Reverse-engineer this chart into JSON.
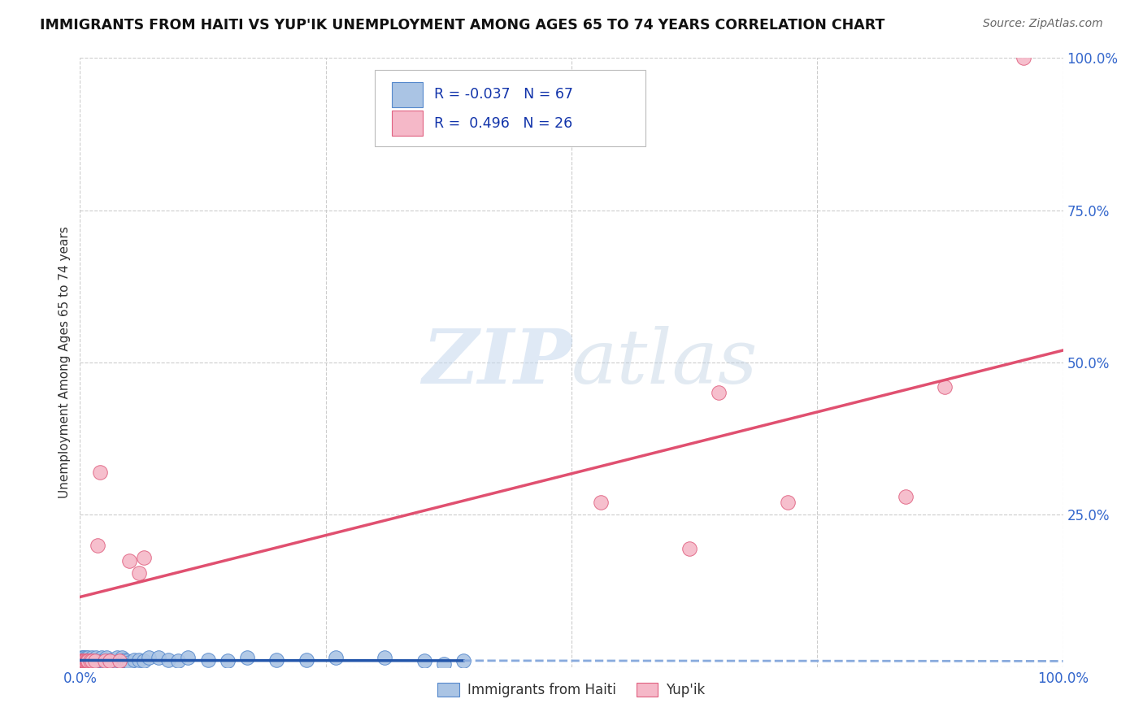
{
  "title": "IMMIGRANTS FROM HAITI VS YUP'IK UNEMPLOYMENT AMONG AGES 65 TO 74 YEARS CORRELATION CHART",
  "source": "Source: ZipAtlas.com",
  "ylabel": "Unemployment Among Ages 65 to 74 years",
  "xlim": [
    0.0,
    1.0
  ],
  "ylim": [
    0.0,
    1.0
  ],
  "xticks": [
    0.0,
    0.25,
    0.5,
    0.75,
    1.0
  ],
  "yticks": [
    0.0,
    0.25,
    0.5,
    0.75,
    1.0
  ],
  "xticklabels": [
    "0.0%",
    "",
    "",
    "",
    "100.0%"
  ],
  "yticklabels": [
    "",
    "25.0%",
    "50.0%",
    "75.0%",
    "100.0%"
  ],
  "background_color": "#ffffff",
  "grid_color": "#cccccc",
  "watermark_zip": "ZIP",
  "watermark_atlas": "atlas",
  "haiti_color": "#aac4e4",
  "haiti_edge_color": "#5588cc",
  "haiti_R": -0.037,
  "haiti_N": 67,
  "haiti_line_color_solid": "#2255aa",
  "haiti_line_color_dashed": "#88aadd",
  "yupik_color": "#f5b8c8",
  "yupik_edge_color": "#e06080",
  "yupik_R": 0.496,
  "yupik_N": 26,
  "yupik_line_color": "#e05070",
  "haiti_x": [
    0.001,
    0.001,
    0.002,
    0.002,
    0.002,
    0.003,
    0.003,
    0.003,
    0.003,
    0.004,
    0.004,
    0.004,
    0.005,
    0.005,
    0.005,
    0.006,
    0.006,
    0.006,
    0.007,
    0.007,
    0.008,
    0.008,
    0.009,
    0.01,
    0.01,
    0.011,
    0.012,
    0.013,
    0.014,
    0.015,
    0.016,
    0.017,
    0.018,
    0.019,
    0.02,
    0.021,
    0.022,
    0.023,
    0.025,
    0.027,
    0.03,
    0.032,
    0.035,
    0.038,
    0.04,
    0.043,
    0.045,
    0.048,
    0.05,
    0.055,
    0.06,
    0.065,
    0.07,
    0.08,
    0.09,
    0.1,
    0.11,
    0.13,
    0.15,
    0.17,
    0.2,
    0.23,
    0.26,
    0.31,
    0.35,
    0.37,
    0.39
  ],
  "haiti_y": [
    0.005,
    0.01,
    0.005,
    0.01,
    0.015,
    0.005,
    0.008,
    0.012,
    0.015,
    0.005,
    0.01,
    0.015,
    0.005,
    0.008,
    0.012,
    0.005,
    0.008,
    0.015,
    0.008,
    0.012,
    0.008,
    0.015,
    0.01,
    0.005,
    0.012,
    0.01,
    0.015,
    0.01,
    0.012,
    0.01,
    0.015,
    0.01,
    0.008,
    0.005,
    0.012,
    0.01,
    0.015,
    0.01,
    0.012,
    0.015,
    0.01,
    0.012,
    0.01,
    0.015,
    0.01,
    0.015,
    0.012,
    0.01,
    0.008,
    0.012,
    0.012,
    0.01,
    0.015,
    0.015,
    0.012,
    0.01,
    0.015,
    0.012,
    0.01,
    0.015,
    0.012,
    0.012,
    0.015,
    0.015,
    0.01,
    0.005,
    0.01
  ],
  "yupik_x": [
    0.001,
    0.002,
    0.003,
    0.004,
    0.005,
    0.006,
    0.007,
    0.008,
    0.01,
    0.012,
    0.015,
    0.018,
    0.02,
    0.025,
    0.03,
    0.04,
    0.05,
    0.06,
    0.065,
    0.53,
    0.62,
    0.65,
    0.72,
    0.84,
    0.88,
    0.96
  ],
  "yupik_y": [
    0.01,
    0.01,
    0.01,
    0.01,
    0.01,
    0.01,
    0.01,
    0.01,
    0.01,
    0.01,
    0.01,
    0.2,
    0.32,
    0.01,
    0.01,
    0.01,
    0.175,
    0.155,
    0.18,
    0.27,
    0.195,
    0.45,
    0.27,
    0.28,
    0.46,
    1.0
  ]
}
